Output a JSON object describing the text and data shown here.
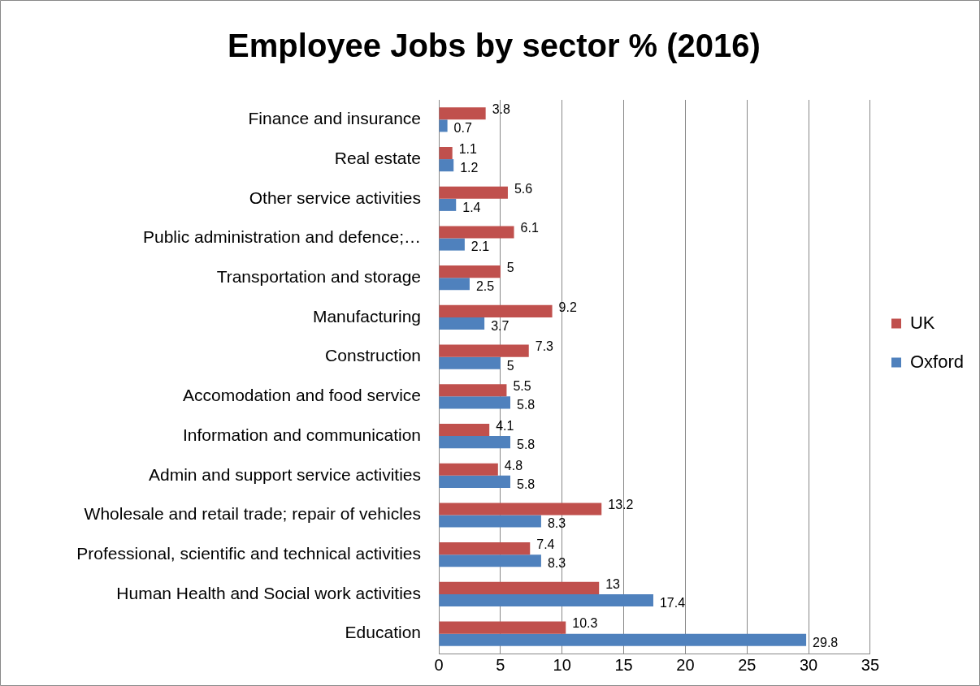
{
  "chart_data": {
    "type": "bar",
    "orientation": "horizontal",
    "title": "Employee Jobs by sector % (2016)",
    "categories": [
      "Finance and insurance",
      "Real estate",
      "Other service activities",
      "Public administration and defence;…",
      "Transportation and storage",
      "Manufacturing",
      "Construction",
      "Accomodation and food service",
      "Information and communication",
      "Admin and support service activities",
      "Wholesale and retail trade; repair of vehicles",
      "Professional, scientific and technical activities",
      "Human Health and Social work activities",
      "Education"
    ],
    "series": [
      {
        "name": "UK",
        "color": "#c0504d",
        "values": [
          3.8,
          1.1,
          5.6,
          6.1,
          5,
          9.2,
          7.3,
          5.5,
          4.1,
          4.8,
          13.2,
          7.4,
          13,
          10.3
        ]
      },
      {
        "name": "Oxford",
        "color": "#4f81bd",
        "values": [
          0.7,
          1.2,
          1.4,
          2.1,
          2.5,
          3.7,
          5,
          5.8,
          5.8,
          5.8,
          8.3,
          8.3,
          17.4,
          29.8
        ]
      }
    ],
    "xlim": [
      0,
      35
    ],
    "xticks": [
      0,
      5,
      10,
      15,
      20,
      25,
      30,
      35
    ],
    "grid": "x",
    "legend": "right",
    "data_labels": true
  }
}
